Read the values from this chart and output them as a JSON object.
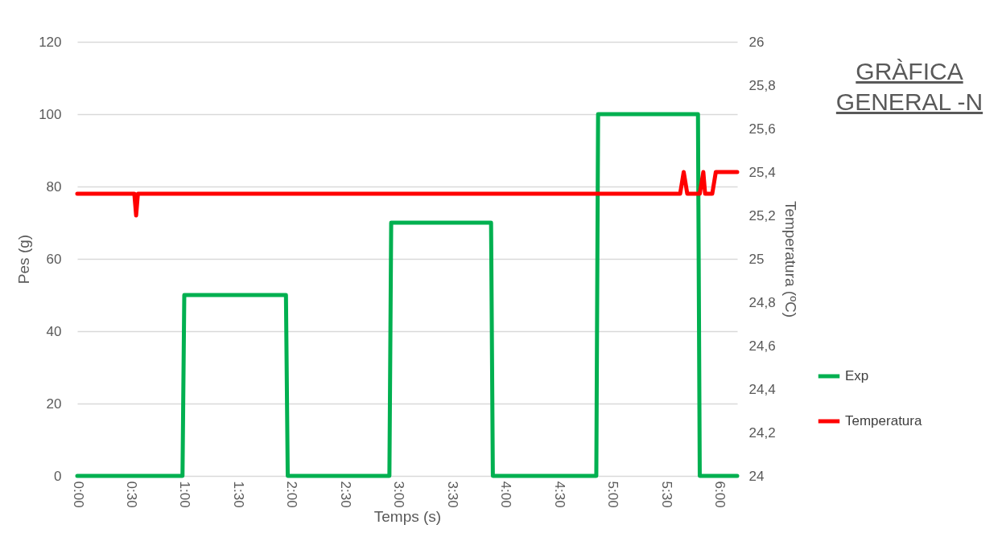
{
  "chart_data": {
    "type": "line",
    "title": "GRÀFICA GENERAL -N",
    "xlabel": "Temps (s)",
    "ylabel": "Pes (g)",
    "y2label": "Temperatura (ºC)",
    "xlim": [
      0,
      370
    ],
    "xticks": [
      {
        "value": 0,
        "label": "0:00"
      },
      {
        "value": 30,
        "label": "0:30"
      },
      {
        "value": 60,
        "label": "1:00"
      },
      {
        "value": 90,
        "label": "1:30"
      },
      {
        "value": 120,
        "label": "2:00"
      },
      {
        "value": 150,
        "label": "2:30"
      },
      {
        "value": 180,
        "label": "3:00"
      },
      {
        "value": 210,
        "label": "3:30"
      },
      {
        "value": 240,
        "label": "4:00"
      },
      {
        "value": 270,
        "label": "4:30"
      },
      {
        "value": 300,
        "label": "5:00"
      },
      {
        "value": 330,
        "label": "5:30"
      },
      {
        "value": 360,
        "label": "6:00"
      }
    ],
    "ylim": [
      0,
      120
    ],
    "yticks": [
      0,
      20,
      40,
      60,
      80,
      100,
      120
    ],
    "y2lim": [
      24,
      26
    ],
    "y2ticks": [
      24,
      {
        "value": 24.2,
        "label": "24,2"
      },
      {
        "value": 24.4,
        "label": "24,4"
      },
      {
        "value": 24.6,
        "label": "24,6"
      },
      {
        "value": 24.8,
        "label": "24,8"
      },
      25,
      {
        "value": 25.2,
        "label": "25,2"
      },
      {
        "value": 25.4,
        "label": "25,4"
      },
      {
        "value": 25.6,
        "label": "25,6"
      },
      {
        "value": 25.8,
        "label": "25,8"
      },
      26
    ],
    "grid": "y",
    "legend": "right",
    "line_style": "solid",
    "marker": "none",
    "series": [
      {
        "name": "Exp",
        "color": "#00b050",
        "x": [
          0,
          59,
          60,
          117,
          118,
          175,
          176,
          232,
          233,
          291,
          292,
          348,
          349,
          370
        ],
        "values": [
          0,
          0,
          50,
          50,
          0,
          0,
          70,
          70,
          0,
          0,
          100,
          100,
          0,
          0
        ]
      },
      {
        "name": "Temperatura",
        "color": "#ff0000",
        "axis": "y2",
        "x": [
          0,
          32,
          33,
          34,
          338,
          340,
          342,
          349,
          351,
          352,
          356,
          358,
          370
        ],
        "values": [
          25.3,
          25.3,
          25.2,
          25.3,
          25.3,
          25.4,
          25.3,
          25.3,
          25.4,
          25.3,
          25.3,
          25.4,
          25.4
        ]
      }
    ]
  }
}
